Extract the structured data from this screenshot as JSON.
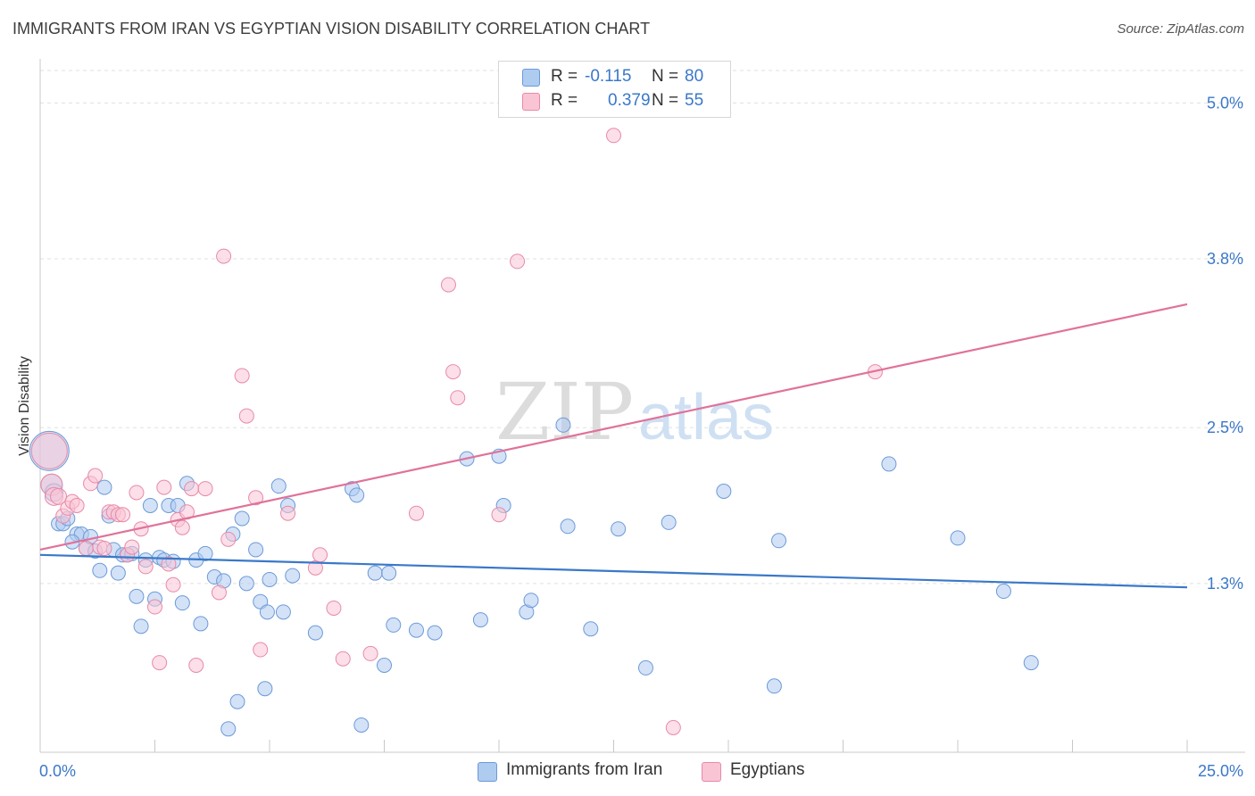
{
  "title": "IMMIGRANTS FROM IRAN VS EGYPTIAN VISION DISABILITY CORRELATION CHART",
  "source": "Source: ZipAtlas.com",
  "watermark": {
    "zip": "ZIP",
    "atlas": "atlas"
  },
  "legend": {
    "r_label": "R =",
    "n_label": "N =",
    "rows": [
      {
        "r": "-0.115",
        "n": "80",
        "color": "#aecbf0",
        "border": "#6d9ad8"
      },
      {
        "r": "0.379",
        "n": "55",
        "color": "#f9c5d5",
        "border": "#e88aa7"
      }
    ]
  },
  "bottom_legend": [
    {
      "label": "Immigrants from Iran",
      "color": "#aecbf0"
    },
    {
      "label": "Egyptians",
      "color": "#f9c5d5"
    }
  ],
  "colors": {
    "blue": "#3a78c9",
    "pink": "#e0729a",
    "grid": "#e0e0e0",
    "tick_text": "#3a78c9"
  },
  "chart_data": {
    "type": "scatter",
    "title": "IMMIGRANTS FROM IRAN VS EGYPTIAN VISION DISABILITY CORRELATION CHART",
    "xlabel": "",
    "ylabel": "Vision Disability",
    "xlim": [
      0,
      25
    ],
    "ylim": [
      0,
      5.25
    ],
    "x_tick_labels": [
      "0.0%",
      "25.0%"
    ],
    "y_ticks": [
      1.3,
      2.5,
      3.8,
      5.0
    ],
    "y_tick_labels": [
      "1.3%",
      "2.5%",
      "3.8%",
      "5.0%"
    ],
    "grid": true,
    "series": [
      {
        "name": "Immigrants from Iran",
        "color": "#aecbf0",
        "stroke": "#6d9ad8",
        "trend": {
          "x": [
            0,
            25
          ],
          "y": [
            1.52,
            1.27
          ]
        },
        "points": [
          [
            0.2,
            2.32,
            22
          ],
          [
            0.25,
            2.06,
            12
          ],
          [
            0.3,
            2.0,
            10
          ],
          [
            0.4,
            1.76,
            8
          ],
          [
            0.5,
            1.76,
            8
          ],
          [
            0.6,
            1.8,
            8
          ],
          [
            0.8,
            1.68,
            8
          ],
          [
            0.9,
            1.68,
            8
          ],
          [
            1.0,
            1.57,
            8
          ],
          [
            1.1,
            1.66,
            8
          ],
          [
            1.2,
            1.55,
            8
          ],
          [
            1.3,
            1.4,
            8
          ],
          [
            1.4,
            2.04,
            8
          ],
          [
            1.5,
            1.82,
            8
          ],
          [
            1.6,
            1.56,
            8
          ],
          [
            1.7,
            1.38,
            8
          ],
          [
            1.8,
            1.52,
            8
          ],
          [
            1.9,
            1.52,
            8
          ],
          [
            2.0,
            1.53,
            8
          ],
          [
            2.1,
            1.2,
            8
          ],
          [
            2.2,
            0.97,
            8
          ],
          [
            2.3,
            1.48,
            8
          ],
          [
            2.4,
            1.9,
            8
          ],
          [
            2.5,
            1.18,
            8
          ],
          [
            2.6,
            1.5,
            8
          ],
          [
            2.7,
            1.48,
            8
          ],
          [
            2.8,
            1.9,
            8
          ],
          [
            2.9,
            1.47,
            8
          ],
          [
            3.0,
            1.9,
            8
          ],
          [
            3.1,
            1.15,
            8
          ],
          [
            3.2,
            2.07,
            8
          ],
          [
            3.4,
            1.48,
            8
          ],
          [
            3.5,
            0.99,
            8
          ],
          [
            3.6,
            1.53,
            8
          ],
          [
            3.8,
            1.35,
            8
          ],
          [
            4.0,
            1.32,
            8
          ],
          [
            4.1,
            0.18,
            8
          ],
          [
            4.2,
            1.68,
            8
          ],
          [
            4.3,
            0.39,
            8
          ],
          [
            4.4,
            1.8,
            8
          ],
          [
            4.5,
            1.3,
            8
          ],
          [
            4.7,
            1.56,
            8
          ],
          [
            4.8,
            1.16,
            8
          ],
          [
            4.9,
            0.49,
            8
          ],
          [
            4.95,
            1.08,
            8
          ],
          [
            5.0,
            1.33,
            8
          ],
          [
            5.2,
            2.05,
            8
          ],
          [
            5.3,
            1.08,
            8
          ],
          [
            5.4,
            1.9,
            8
          ],
          [
            5.5,
            1.36,
            8
          ],
          [
            6.0,
            0.92,
            8
          ],
          [
            6.8,
            2.03,
            8
          ],
          [
            6.9,
            1.98,
            8
          ],
          [
            7.0,
            0.21,
            8
          ],
          [
            7.3,
            1.38,
            8
          ],
          [
            7.5,
            0.67,
            8
          ],
          [
            7.6,
            1.38,
            8
          ],
          [
            7.7,
            0.98,
            8
          ],
          [
            8.2,
            0.94,
            8
          ],
          [
            8.6,
            0.92,
            8
          ],
          [
            9.3,
            2.26,
            8
          ],
          [
            9.6,
            1.02,
            8
          ],
          [
            10.0,
            2.28,
            8
          ],
          [
            10.1,
            1.9,
            8
          ],
          [
            10.6,
            1.08,
            8
          ],
          [
            10.7,
            1.17,
            8
          ],
          [
            11.4,
            2.52,
            8
          ],
          [
            11.5,
            1.74,
            8
          ],
          [
            12.0,
            0.95,
            8
          ],
          [
            12.6,
            1.72,
            8
          ],
          [
            13.2,
            0.65,
            8
          ],
          [
            13.7,
            1.77,
            8
          ],
          [
            14.9,
            2.01,
            8
          ],
          [
            16.0,
            0.51,
            8
          ],
          [
            16.1,
            1.63,
            8
          ],
          [
            18.5,
            2.22,
            8
          ],
          [
            20.0,
            1.65,
            8
          ],
          [
            21.0,
            1.24,
            8
          ],
          [
            21.6,
            0.69,
            8
          ],
          [
            0.7,
            1.62,
            8
          ]
        ]
      },
      {
        "name": "Egyptians",
        "color": "#f9c5d5",
        "stroke": "#e88aa7",
        "trend": {
          "x": [
            0,
            25
          ],
          "y": [
            1.56,
            3.45
          ]
        },
        "points": [
          [
            0.2,
            2.32,
            20
          ],
          [
            0.25,
            2.06,
            12
          ],
          [
            0.3,
            1.97,
            10
          ],
          [
            0.4,
            1.97,
            9
          ],
          [
            0.5,
            1.82,
            8
          ],
          [
            0.6,
            1.88,
            8
          ],
          [
            0.7,
            1.93,
            8
          ],
          [
            0.8,
            1.9,
            8
          ],
          [
            1.0,
            1.57,
            8
          ],
          [
            1.1,
            2.07,
            8
          ],
          [
            1.2,
            2.13,
            8
          ],
          [
            1.3,
            1.58,
            8
          ],
          [
            1.4,
            1.57,
            8
          ],
          [
            1.5,
            1.85,
            8
          ],
          [
            1.6,
            1.85,
            8
          ],
          [
            1.7,
            1.83,
            8
          ],
          [
            1.8,
            1.83,
            8
          ],
          [
            1.9,
            1.52,
            8
          ],
          [
            2.0,
            1.58,
            8
          ],
          [
            2.1,
            2.0,
            8
          ],
          [
            2.2,
            1.72,
            8
          ],
          [
            2.3,
            1.43,
            8
          ],
          [
            2.5,
            1.12,
            8
          ],
          [
            2.6,
            0.69,
            8
          ],
          [
            2.7,
            2.04,
            8
          ],
          [
            2.8,
            1.45,
            8
          ],
          [
            2.9,
            1.29,
            8
          ],
          [
            3.0,
            1.79,
            8
          ],
          [
            3.1,
            1.73,
            8
          ],
          [
            3.2,
            1.85,
            8
          ],
          [
            3.3,
            2.03,
            8
          ],
          [
            3.4,
            0.67,
            8
          ],
          [
            3.6,
            2.03,
            8
          ],
          [
            3.9,
            1.23,
            8
          ],
          [
            4.0,
            3.82,
            8
          ],
          [
            4.1,
            1.64,
            8
          ],
          [
            4.4,
            2.9,
            8
          ],
          [
            4.5,
            2.59,
            8
          ],
          [
            4.7,
            1.96,
            8
          ],
          [
            4.8,
            0.79,
            8
          ],
          [
            5.4,
            1.84,
            8
          ],
          [
            6.0,
            1.42,
            8
          ],
          [
            6.1,
            1.52,
            8
          ],
          [
            6.4,
            1.11,
            8
          ],
          [
            6.6,
            0.72,
            8
          ],
          [
            7.2,
            0.76,
            8
          ],
          [
            8.2,
            1.84,
            8
          ],
          [
            8.9,
            3.6,
            8
          ],
          [
            9.0,
            2.93,
            8
          ],
          [
            9.1,
            2.73,
            8
          ],
          [
            10.0,
            1.83,
            8
          ],
          [
            10.4,
            3.78,
            8
          ],
          [
            12.5,
            4.75,
            8
          ],
          [
            13.8,
            0.19,
            8
          ],
          [
            18.2,
            2.93,
            8
          ]
        ]
      }
    ]
  }
}
